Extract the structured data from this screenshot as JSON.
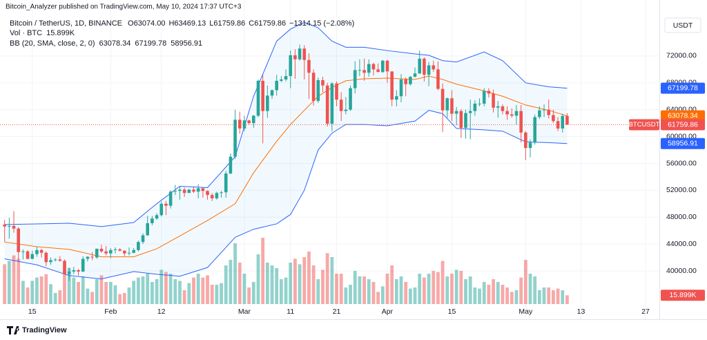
{
  "header": "Bitcoin_Analyzer published on TradingView.com, May 10, 2024 17:37 UTC+3",
  "branding": "TradingView",
  "chart_data": {
    "type": "candlestick",
    "symbol": "Bitcoin / TetherUS, 1D, BINANCE",
    "ohlc_legend": [
      "O63074.00",
      "H63469.13",
      "L61759.86",
      "C61759.86",
      "−1314.15 (−2.08%)"
    ],
    "currency": "USDT",
    "ticker": "BTCUSDT",
    "up_color": "#26a69a",
    "down_color": "#ef5350",
    "grid": true,
    "xlim": [
      -1,
      142
    ],
    "ylim": [
      35060,
      80330
    ],
    "vlim": [
      0,
      150000
    ],
    "xticks": [
      {
        "value": 6,
        "label": "15"
      },
      {
        "value": 23,
        "label": "Feb"
      },
      {
        "value": 34,
        "label": "12"
      },
      {
        "value": 52,
        "label": "Mar"
      },
      {
        "value": 62,
        "label": "11"
      },
      {
        "value": 72,
        "label": "21"
      },
      {
        "value": 83,
        "label": "Apr"
      },
      {
        "value": 97,
        "label": "15"
      },
      {
        "value": 113,
        "label": "May"
      },
      {
        "value": 125,
        "label": "13"
      },
      {
        "value": 139,
        "label": "27"
      }
    ],
    "yticks": [
      {
        "value": 40000,
        "label": "40000.00"
      },
      {
        "value": 44000,
        "label": "44000.00"
      },
      {
        "value": 48000,
        "label": "48000.00"
      },
      {
        "value": 52000,
        "label": "52000.00"
      },
      {
        "value": 56000,
        "label": "56000.00"
      },
      {
        "value": 60000,
        "label": "60000.00"
      },
      {
        "value": 64000,
        "label": "64000.00"
      },
      {
        "value": 68000,
        "label": "68000.00"
      },
      {
        "value": 72000,
        "label": "72000.00"
      }
    ],
    "candles": [
      [
        46900,
        47600,
        44300,
        46600
      ],
      [
        46600,
        47900,
        44800,
        46700
      ],
      [
        46700,
        48900,
        45700,
        46300
      ],
      [
        46300,
        46500,
        41500,
        42800
      ],
      [
        42800,
        43200,
        41700,
        42900
      ],
      [
        42900,
        43100,
        41700,
        41800
      ],
      [
        41800,
        43000,
        41700,
        42500
      ],
      [
        42500,
        43600,
        42100,
        43100
      ],
      [
        43100,
        43300,
        42000,
        42700
      ],
      [
        42700,
        42900,
        40700,
        41300
      ],
      [
        41300,
        42000,
        40900,
        41600
      ],
      [
        41600,
        41900,
        41400,
        41700
      ],
      [
        41700,
        42200,
        41400,
        41500
      ],
      [
        41500,
        41700,
        39400,
        39500
      ],
      [
        39500,
        40500,
        38500,
        39900
      ],
      [
        39900,
        40600,
        39500,
        40100
      ],
      [
        40100,
        40300,
        39300,
        39900
      ],
      [
        39900,
        42200,
        39800,
        41800
      ],
      [
        41800,
        42200,
        41400,
        42100
      ],
      [
        42100,
        42800,
        41600,
        42000
      ],
      [
        42000,
        43300,
        41800,
        43300
      ],
      [
        43300,
        43900,
        42700,
        42900
      ],
      [
        42900,
        43700,
        42300,
        42600
      ],
      [
        42600,
        43400,
        41900,
        43100
      ],
      [
        43100,
        43500,
        42600,
        43200
      ],
      [
        43200,
        43400,
        42900,
        43000
      ],
      [
        43000,
        43100,
        42200,
        42600
      ],
      [
        42600,
        43500,
        42300,
        42700
      ],
      [
        42700,
        43400,
        42600,
        43100
      ],
      [
        43100,
        44500,
        42900,
        44300
      ],
      [
        44300,
        45600,
        44000,
        45300
      ],
      [
        45300,
        48200,
        45200,
        47100
      ],
      [
        47100,
        48200,
        46800,
        47800
      ],
      [
        47800,
        48600,
        47600,
        48300
      ],
      [
        48300,
        50300,
        48100,
        50000
      ],
      [
        50000,
        50400,
        48300,
        49700
      ],
      [
        49700,
        52000,
        49300,
        51800
      ],
      [
        51800,
        52800,
        51300,
        51900
      ],
      [
        51900,
        52600,
        50600,
        52100
      ],
      [
        52100,
        52400,
        51000,
        51600
      ],
      [
        51600,
        52200,
        51600,
        52100
      ],
      [
        52100,
        52500,
        51600,
        51800
      ],
      [
        51800,
        52900,
        50800,
        52300
      ],
      [
        52300,
        52400,
        50900,
        51900
      ],
      [
        51900,
        52000,
        50600,
        51300
      ],
      [
        51300,
        51600,
        50400,
        50800
      ],
      [
        50800,
        51800,
        50600,
        51600
      ],
      [
        51600,
        51900,
        50900,
        51700
      ],
      [
        51700,
        54900,
        50900,
        54500
      ],
      [
        54500,
        57500,
        54400,
        57000
      ],
      [
        57000,
        64000,
        56700,
        62500
      ],
      [
        62500,
        63700,
        60400,
        61200
      ],
      [
        61200,
        63100,
        60800,
        62400
      ],
      [
        62400,
        62500,
        61800,
        62000
      ],
      [
        62000,
        63200,
        61300,
        63100
      ],
      [
        63100,
        68500,
        62900,
        68300
      ],
      [
        68300,
        69200,
        59000,
        63800
      ],
      [
        63800,
        67600,
        62800,
        66100
      ],
      [
        66100,
        67000,
        65600,
        66900
      ],
      [
        66900,
        69200,
        66100,
        68300
      ],
      [
        68300,
        69000,
        68100,
        68500
      ],
      [
        68500,
        70000,
        68200,
        69000
      ],
      [
        69000,
        72800,
        67200,
        72100
      ],
      [
        72100,
        73000,
        68600,
        71500
      ],
      [
        71500,
        73700,
        71300,
        73100
      ],
      [
        73100,
        73600,
        68500,
        71400
      ],
      [
        71400,
        72400,
        65600,
        69500
      ],
      [
        69500,
        70000,
        64600,
        65300
      ],
      [
        65300,
        68800,
        65000,
        68400
      ],
      [
        68400,
        68900,
        66600,
        67600
      ],
      [
        67600,
        68000,
        61500,
        61900
      ],
      [
        61900,
        68100,
        60800,
        67900
      ],
      [
        67900,
        68200,
        64500,
        65500
      ],
      [
        65500,
        66600,
        62300,
        63800
      ],
      [
        63800,
        65900,
        63300,
        64000
      ],
      [
        64000,
        67600,
        63800,
        67200
      ],
      [
        67200,
        71200,
        66400,
        69900
      ],
      [
        69900,
        71500,
        69000,
        69900
      ],
      [
        69900,
        71600,
        68300,
        69500
      ],
      [
        69500,
        71500,
        68900,
        70800
      ],
      [
        70800,
        71000,
        69100,
        70000
      ],
      [
        70000,
        70900,
        69600,
        69600
      ],
      [
        69600,
        71400,
        69500,
        71300
      ],
      [
        71300,
        71400,
        68000,
        69700
      ],
      [
        69700,
        69700,
        64500,
        65500
      ],
      [
        65500,
        66900,
        64500,
        66000
      ],
      [
        66000,
        69300,
        65100,
        68500
      ],
      [
        68500,
        68800,
        66000,
        67800
      ],
      [
        67800,
        69000,
        67600,
        68900
      ],
      [
        68900,
        70300,
        68800,
        69400
      ],
      [
        69400,
        72800,
        69300,
        71600
      ],
      [
        71600,
        71800,
        68200,
        69200
      ],
      [
        69200,
        71100,
        67500,
        70600
      ],
      [
        70600,
        71300,
        69600,
        70000
      ],
      [
        70000,
        71200,
        66900,
        67100
      ],
      [
        67100,
        67900,
        60700,
        63900
      ],
      [
        63900,
        65800,
        62800,
        65700
      ],
      [
        65700,
        66900,
        62300,
        63400
      ],
      [
        63400,
        64400,
        61700,
        63800
      ],
      [
        63800,
        64100,
        59800,
        61300
      ],
      [
        61300,
        64000,
        59700,
        63500
      ],
      [
        63500,
        65500,
        59600,
        63800
      ],
      [
        63800,
        65400,
        63100,
        64900
      ],
      [
        64900,
        65700,
        64500,
        64900
      ],
      [
        64900,
        67200,
        64500,
        66800
      ],
      [
        66800,
        67200,
        65800,
        66400
      ],
      [
        66400,
        67000,
        63600,
        64300
      ],
      [
        64300,
        65300,
        62800,
        64500
      ],
      [
        64500,
        64800,
        63300,
        63800
      ],
      [
        63800,
        64500,
        62500,
        63300
      ],
      [
        63300,
        64200,
        62800,
        63100
      ],
      [
        63100,
        64700,
        61800,
        63800
      ],
      [
        63800,
        64700,
        59100,
        60600
      ],
      [
        60600,
        60800,
        56500,
        58300
      ],
      [
        58300,
        59600,
        56900,
        59100
      ],
      [
        59100,
        63300,
        58800,
        62900
      ],
      [
        62900,
        64500,
        62600,
        63900
      ],
      [
        63900,
        64800,
        62900,
        64000
      ],
      [
        64000,
        65500,
        62700,
        63200
      ],
      [
        63200,
        64000,
        62000,
        62300
      ],
      [
        62300,
        62900,
        60800,
        61200
      ],
      [
        61200,
        63400,
        60600,
        63074
      ],
      [
        63074,
        63469.13,
        61759.86,
        61759.86
      ]
    ],
    "volume": {
      "name": "Vol · BTC",
      "last_value_label": "15.899K",
      "values": [
        72000,
        78000,
        88000,
        82000,
        42000,
        30000,
        42000,
        48000,
        50000,
        54000,
        36000,
        20000,
        25000,
        60000,
        65000,
        48000,
        40000,
        50000,
        28000,
        22000,
        45000,
        52000,
        40000,
        40000,
        34000,
        18000,
        20000,
        30000,
        42000,
        48000,
        50000,
        55000,
        40000,
        45000,
        62000,
        58000,
        55000,
        45000,
        42000,
        25000,
        38000,
        48000,
        55000,
        48000,
        52000,
        35000,
        35000,
        38000,
        70000,
        80000,
        110000,
        75000,
        55000,
        30000,
        40000,
        90000,
        120000,
        75000,
        70000,
        65000,
        45000,
        48000,
        75000,
        82000,
        72000,
        85000,
        95000,
        70000,
        45000,
        62000,
        92000,
        85000,
        55000,
        55000,
        30000,
        35000,
        60000,
        50000,
        50000,
        45000,
        40000,
        22000,
        32000,
        55000,
        70000,
        45000,
        50000,
        40000,
        28000,
        30000,
        55000,
        48000,
        55000,
        60000,
        58000,
        78000,
        50000,
        55000,
        62000,
        60000,
        45000,
        50000,
        30000,
        28000,
        40000,
        35000,
        45000,
        40000,
        35000,
        30000,
        22000,
        25000,
        48000,
        80000,
        55000,
        50000,
        25000,
        30000,
        30000,
        25000,
        28000,
        25000,
        15899
      ]
    },
    "bb": {
      "name": "BB (20, SMA, close, 2, 0)",
      "fill": "rgba(33,150,243,0.06)",
      "x": [
        0,
        7,
        14,
        21,
        28,
        33,
        38,
        44,
        50,
        54,
        59,
        62,
        65,
        68,
        71,
        74,
        78,
        83,
        89,
        92,
        95,
        98,
        104,
        108,
        113,
        118,
        122
      ],
      "upper": {
        "color": "#2962ff",
        "values": [
          46900,
          47000,
          47100,
          46600,
          47200,
          50000,
          52600,
          52400,
          57000,
          66000,
          74200,
          76000,
          77000,
          76200,
          74200,
          73300,
          73300,
          72800,
          72300,
          72100,
          71300,
          71100,
          72600,
          71300,
          68000,
          67400,
          67199.78
        ]
      },
      "middle": {
        "color": "#ff6d00",
        "values": [
          44300,
          43600,
          43200,
          42100,
          42100,
          43300,
          45200,
          47500,
          50000,
          54600,
          59300,
          61800,
          63900,
          66000,
          67300,
          68300,
          68600,
          68700,
          68500,
          69000,
          68500,
          67800,
          66800,
          66000,
          64700,
          63900,
          63078.34
        ]
      },
      "lower": {
        "color": "#2962ff",
        "values": [
          41800,
          40900,
          39300,
          38800,
          39900,
          39500,
          39200,
          40500,
          45000,
          46200,
          47000,
          48400,
          52000,
          58000,
          60500,
          61800,
          61800,
          61600,
          62300,
          63900,
          63400,
          61200,
          61000,
          60800,
          59200,
          59100,
          58956.91
        ]
      }
    }
  }
}
